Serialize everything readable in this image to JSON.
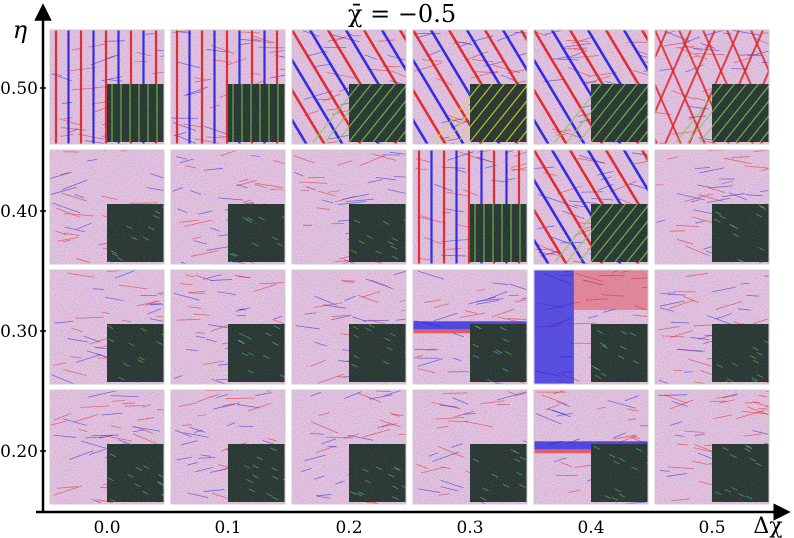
{
  "title": "χ̄ = −0.5",
  "axes": {
    "x_label": "Δχ",
    "y_label": "η",
    "x_ticks": [
      "0.0",
      "0.1",
      "0.2",
      "0.3",
      "0.4",
      "0.5"
    ],
    "y_ticks": [
      "0.50",
      "0.40",
      "0.30",
      "0.20"
    ]
  },
  "palette": {
    "red": "#e02020",
    "blue": "#2020e0",
    "background": "#ece4ea",
    "inset_bg": "#1c201c",
    "inset_green": "#7ad04a",
    "inset_cyan": "#4ad0c8",
    "inset_yellow": "#e0e020"
  },
  "grid": {
    "rows": [
      [
        "vertical-lines",
        "vertical-lines",
        "diagonal-lines",
        "diagonal-lines",
        "diagonal-lines",
        "crossed-lines"
      ],
      [
        "disordered",
        "disordered",
        "disordered",
        "vertical-lines",
        "diagonal-lines",
        "disordered"
      ],
      [
        "disordered",
        "disordered",
        "disordered",
        "horizontal-band",
        "phase-separated",
        "disordered"
      ],
      [
        "disordered",
        "disordered",
        "disordered",
        "disordered",
        "horizontal-band",
        "disordered"
      ]
    ]
  }
}
